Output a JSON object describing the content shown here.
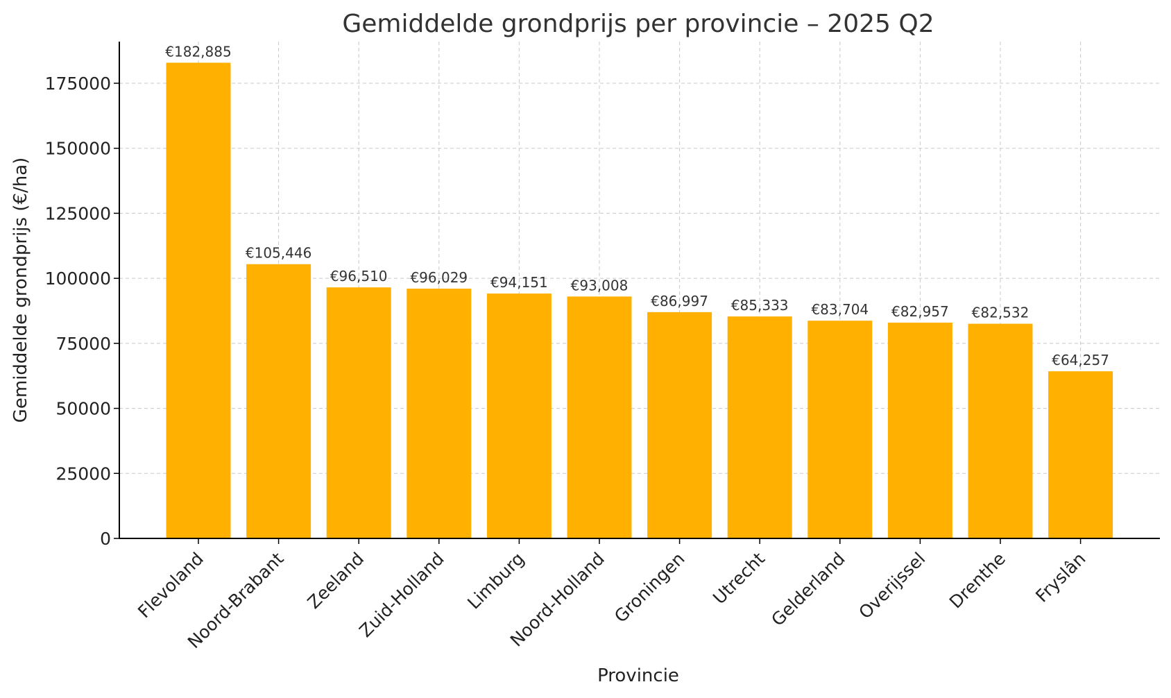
{
  "chart_data": {
    "type": "bar",
    "title": "Gemiddelde grondprijs per provincie – 2025 Q2",
    "xlabel": "Provincie",
    "ylabel": "Gemiddelde grondprijs (€/ha)",
    "categories": [
      "Flevoland",
      "Noord-Brabant",
      "Zeeland",
      "Zuid-Holland",
      "Limburg",
      "Noord-Holland",
      "Groningen",
      "Utrecht",
      "Gelderland",
      "Overijssel",
      "Drenthe",
      "Fryslân"
    ],
    "values": [
      182885,
      105446,
      96510,
      96029,
      94151,
      93008,
      86997,
      85333,
      83704,
      82957,
      82532,
      64257
    ],
    "data_labels": [
      "€182,885",
      "€105,446",
      "€96,510",
      "€96,029",
      "€94,151",
      "€93,008",
      "€86,997",
      "€85,333",
      "€83,704",
      "€82,957",
      "€82,532",
      "€64,257"
    ],
    "yticks": [
      0,
      25000,
      50000,
      75000,
      100000,
      125000,
      150000,
      175000
    ],
    "ytick_labels": [
      "0",
      "25000",
      "50000",
      "75000",
      "100000",
      "125000",
      "150000",
      "175000"
    ],
    "ylim": [
      0,
      191000
    ],
    "grid": true,
    "bar_color": "#FFB000"
  }
}
